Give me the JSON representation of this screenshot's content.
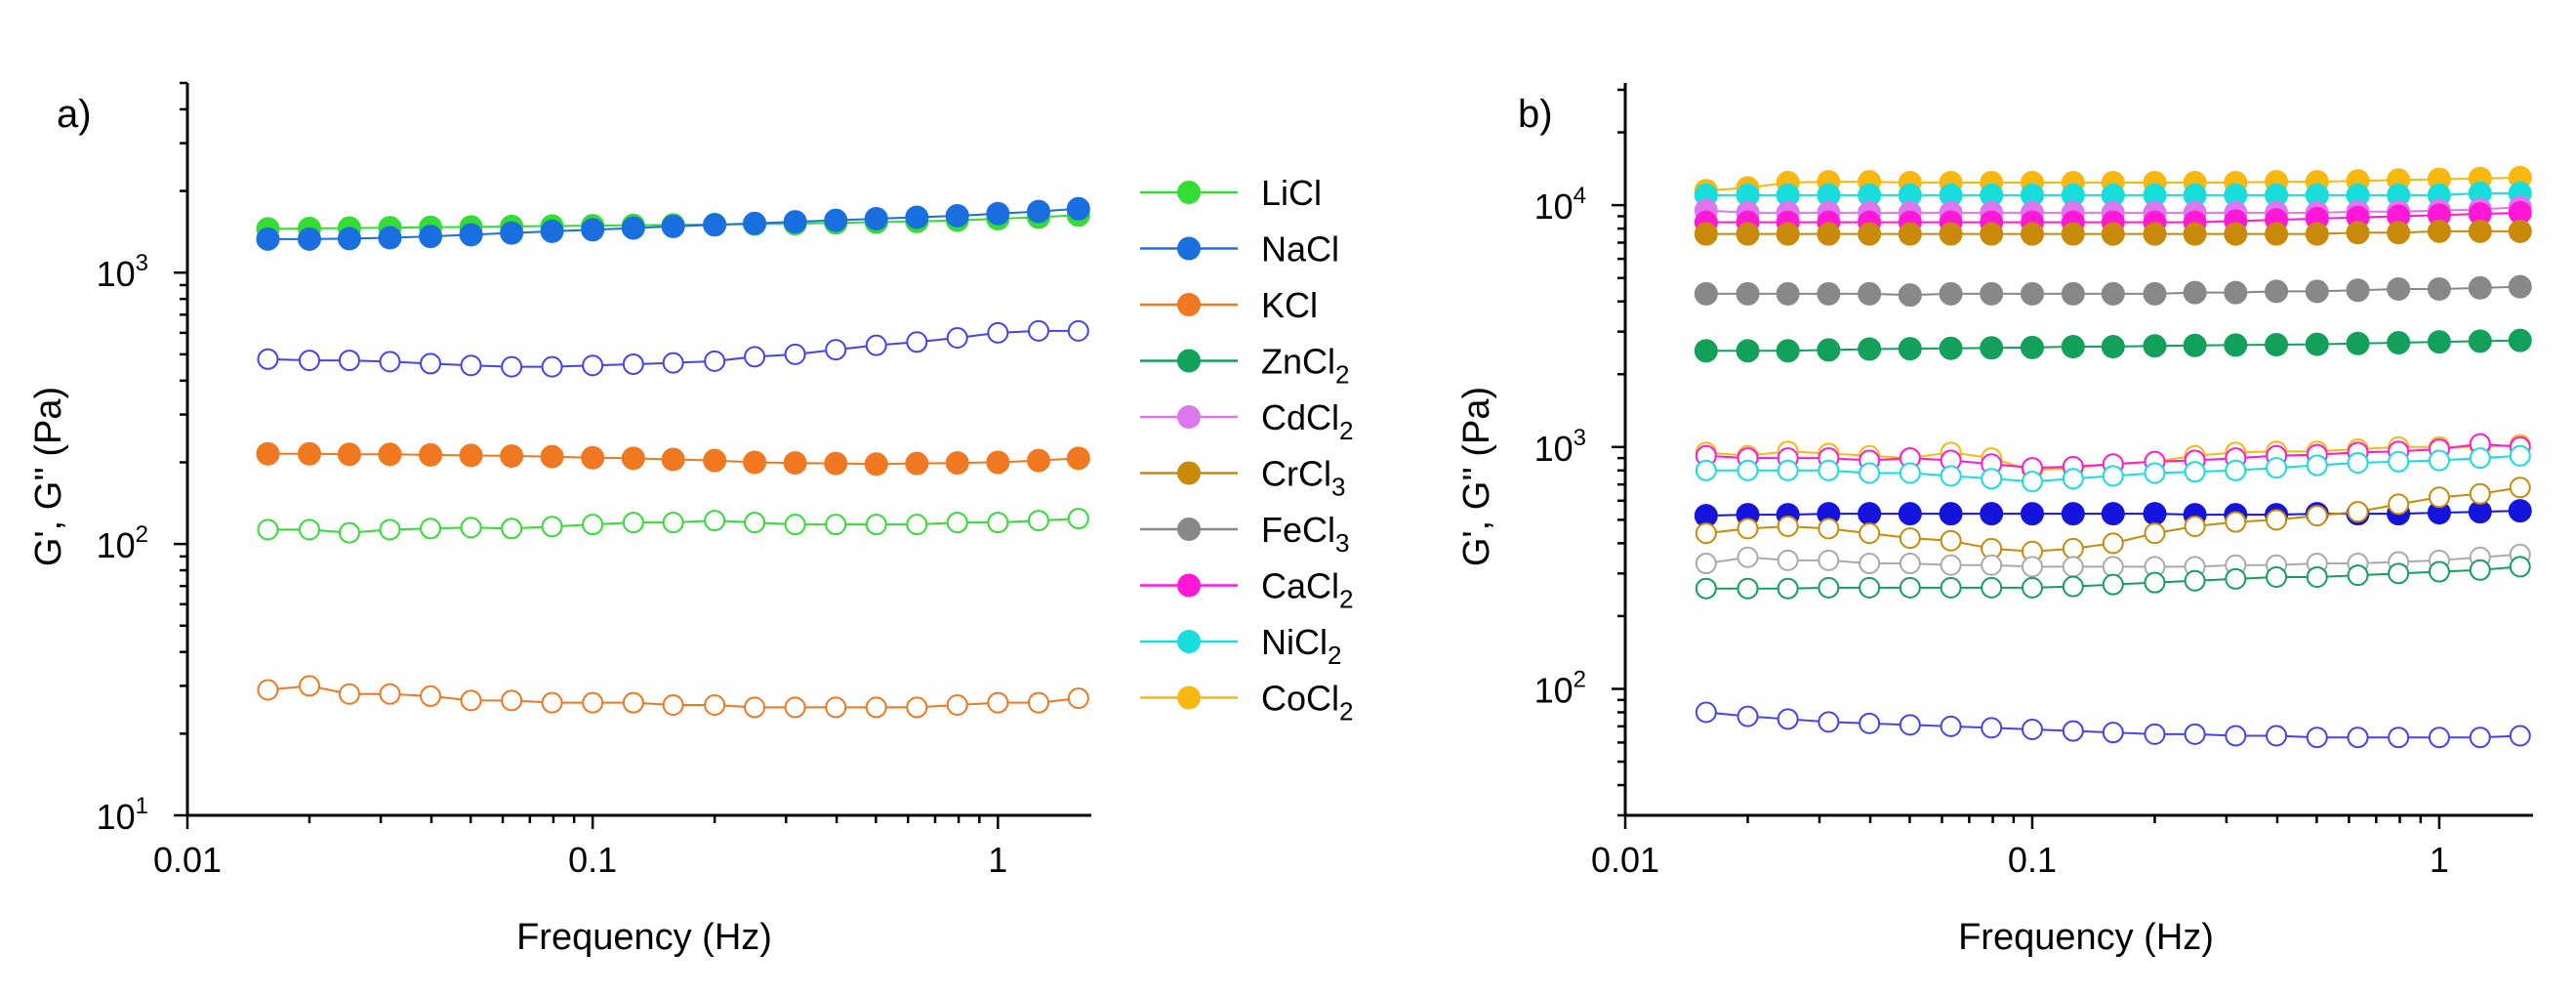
{
  "figure": {
    "panel_a_label": "a)",
    "panel_b_label": "b)"
  },
  "legend": {
    "items": [
      {
        "name": "LiCl",
        "color": "#33dd33",
        "sub": ""
      },
      {
        "name": "NaCl",
        "color": "#1a6fe0",
        "sub": ""
      },
      {
        "name": "KCl",
        "color": "#f07820",
        "sub": ""
      },
      {
        "name": "ZnCl",
        "color": "#12a05a",
        "sub": "2"
      },
      {
        "name": "CdCl",
        "color": "#dd77ee",
        "sub": "2"
      },
      {
        "name": "CrCl",
        "color": "#c88a08",
        "sub": "3"
      },
      {
        "name": "FeCl",
        "color": "#888888",
        "sub": "3"
      },
      {
        "name": "CaCl",
        "color": "#ff18d8",
        "sub": "2"
      },
      {
        "name": "NiCl",
        "color": "#18dddd",
        "sub": "2"
      },
      {
        "name": "CoCl",
        "color": "#f8b810",
        "sub": "2"
      }
    ]
  },
  "chart_data": [
    {
      "id": "a",
      "type": "scatter",
      "title": "",
      "xlabel": "Frequency (Hz)",
      "ylabel": "G', G'' (Pa)",
      "xscale": "log",
      "yscale": "log",
      "xlim": [
        0.01,
        1.7
      ],
      "ylim": [
        10,
        5000
      ],
      "xticks": [
        {
          "v": 0.01,
          "label": "0.01"
        },
        {
          "v": 0.1,
          "label": "0.1"
        },
        {
          "v": 1,
          "label": "1"
        }
      ],
      "yticks": [
        {
          "v": 10,
          "base": "10",
          "exp": "1"
        },
        {
          "v": 100,
          "base": "10",
          "exp": "2"
        },
        {
          "v": 1000,
          "base": "10",
          "exp": "3"
        }
      ],
      "x": [
        0.0158,
        0.02,
        0.0251,
        0.0316,
        0.0398,
        0.0501,
        0.0631,
        0.0794,
        0.1,
        0.126,
        0.158,
        0.2,
        0.251,
        0.316,
        0.398,
        0.501,
        0.631,
        0.794,
        1.0,
        1.26,
        1.58
      ],
      "series": [
        {
          "name": "LiCl G'",
          "color": "#33dd33",
          "filled": true,
          "values": [
            1450,
            1455,
            1460,
            1465,
            1470,
            1475,
            1480,
            1485,
            1490,
            1495,
            1500,
            1505,
            1510,
            1515,
            1525,
            1535,
            1545,
            1560,
            1580,
            1600,
            1630
          ]
        },
        {
          "name": "NaCl G'",
          "color": "#1a6fe0",
          "filled": true,
          "values": [
            1330,
            1330,
            1335,
            1345,
            1360,
            1380,
            1400,
            1420,
            1440,
            1460,
            1480,
            1500,
            1520,
            1540,
            1560,
            1580,
            1600,
            1620,
            1650,
            1680,
            1720
          ]
        },
        {
          "name": "NaCl G''",
          "color": "#4444ee",
          "filled": false,
          "values": [
            480,
            475,
            475,
            470,
            462,
            455,
            450,
            450,
            455,
            460,
            465,
            472,
            490,
            500,
            520,
            540,
            555,
            575,
            600,
            610,
            610
          ]
        },
        {
          "name": "KCl G'",
          "color": "#f07820",
          "filled": true,
          "values": [
            215,
            215,
            214,
            214,
            213,
            212,
            211,
            210,
            208,
            207,
            205,
            203,
            200,
            199,
            198,
            197,
            198,
            199,
            200,
            203,
            207
          ]
        },
        {
          "name": "LiCl G''",
          "color": "#33dd33",
          "filled": false,
          "values": [
            113,
            113,
            110,
            113,
            114,
            115,
            114,
            116,
            118,
            120,
            120,
            122,
            120,
            118,
            118,
            118,
            118,
            120,
            120,
            122,
            124
          ]
        },
        {
          "name": "KCl G''",
          "color": "#f07820",
          "filled": false,
          "values": [
            29,
            30,
            28,
            28,
            27.5,
            26.5,
            26.5,
            26,
            26,
            26,
            25.5,
            25.5,
            25,
            25,
            25,
            25,
            25,
            25.5,
            26,
            26,
            27
          ]
        }
      ]
    },
    {
      "id": "b",
      "type": "scatter",
      "title": "",
      "xlabel": "Frequency (Hz)",
      "ylabel": "G', G'' (Pa)",
      "xscale": "log",
      "yscale": "log",
      "xlim": [
        0.01,
        1.7
      ],
      "ylim": [
        30,
        32000
      ],
      "xticks": [
        {
          "v": 0.01,
          "label": "0.01"
        },
        {
          "v": 0.1,
          "label": "0.1"
        },
        {
          "v": 1,
          "label": "1"
        }
      ],
      "yticks": [
        {
          "v": 100,
          "base": "10",
          "exp": "2"
        },
        {
          "v": 1000,
          "base": "10",
          "exp": "3"
        },
        {
          "v": 10000,
          "base": "10",
          "exp": "4"
        }
      ],
      "x": [
        0.0158,
        0.02,
        0.0251,
        0.0316,
        0.0398,
        0.0501,
        0.0631,
        0.0794,
        0.1,
        0.126,
        0.158,
        0.2,
        0.251,
        0.316,
        0.398,
        0.501,
        0.631,
        0.794,
        1.0,
        1.26,
        1.58
      ],
      "series": [
        {
          "name": "CoCl2 G'",
          "color": "#f8b810",
          "filled": true,
          "values": [
            11500,
            11800,
            12400,
            12500,
            12500,
            12400,
            12400,
            12400,
            12400,
            12400,
            12400,
            12400,
            12400,
            12400,
            12500,
            12500,
            12600,
            12700,
            12800,
            12900,
            13000
          ]
        },
        {
          "name": "NiCl2 G'",
          "color": "#18dddd",
          "filled": true,
          "values": [
            11000,
            11000,
            11000,
            11000,
            11000,
            11000,
            11000,
            11000,
            11000,
            11000,
            11000,
            11000,
            11000,
            11000,
            11000,
            11000,
            11000,
            11000,
            11000,
            11200,
            11200
          ]
        },
        {
          "name": "CdCl2 G'",
          "color": "#dd77ee",
          "filled": true,
          "values": [
            9500,
            9300,
            9300,
            9300,
            9300,
            9300,
            9300,
            9300,
            9300,
            9300,
            9300,
            9300,
            9300,
            9300,
            9300,
            9300,
            9400,
            9400,
            9500,
            9600,
            9800
          ]
        },
        {
          "name": "CaCl2 G'",
          "color": "#ff18d8",
          "filled": true,
          "values": [
            8500,
            8500,
            8500,
            8500,
            8500,
            8500,
            8500,
            8500,
            8500,
            8500,
            8500,
            8500,
            8500,
            8600,
            8700,
            8800,
            8900,
            9000,
            9100,
            9200,
            9300
          ]
        },
        {
          "name": "CrCl3 G'",
          "color": "#c88a08",
          "filled": true,
          "values": [
            7600,
            7600,
            7600,
            7600,
            7600,
            7600,
            7600,
            7600,
            7600,
            7600,
            7600,
            7600,
            7600,
            7600,
            7600,
            7600,
            7700,
            7700,
            7800,
            7800,
            7800
          ]
        },
        {
          "name": "FeCl3 G'",
          "color": "#888888",
          "filled": true,
          "values": [
            4300,
            4300,
            4300,
            4300,
            4300,
            4250,
            4300,
            4300,
            4300,
            4300,
            4300,
            4300,
            4350,
            4350,
            4400,
            4400,
            4450,
            4500,
            4500,
            4550,
            4600
          ]
        },
        {
          "name": "ZnCl2 G'",
          "color": "#12a05a",
          "filled": true,
          "values": [
            2500,
            2500,
            2500,
            2520,
            2540,
            2550,
            2560,
            2570,
            2580,
            2600,
            2600,
            2620,
            2630,
            2640,
            2650,
            2660,
            2680,
            2700,
            2720,
            2740,
            2760
          ]
        },
        {
          "name": "CoCl2 G''",
          "color": "#f8b810",
          "filled": false,
          "values": [
            950,
            920,
            960,
            940,
            920,
            900,
            950,
            900,
            800,
            820,
            850,
            870,
            920,
            950,
            960,
            960,
            980,
            1000,
            1000,
            1000,
            1020
          ]
        },
        {
          "name": "CaCl2 G''",
          "color": "#ff18d8",
          "filled": false,
          "values": [
            920,
            900,
            900,
            900,
            880,
            900,
            880,
            850,
            820,
            830,
            850,
            870,
            880,
            900,
            920,
            930,
            950,
            960,
            980,
            1030,
            1000
          ]
        },
        {
          "name": "NiCl2 G''",
          "color": "#18dddd",
          "filled": false,
          "values": [
            800,
            800,
            800,
            800,
            780,
            780,
            760,
            740,
            720,
            740,
            760,
            780,
            790,
            800,
            820,
            840,
            860,
            870,
            880,
            900,
            920
          ]
        },
        {
          "name": "NaCl G' (b)",
          "color": "#1414dd",
          "filled": true,
          "values": [
            520,
            525,
            525,
            530,
            530,
            530,
            530,
            530,
            530,
            530,
            530,
            530,
            525,
            525,
            525,
            530,
            530,
            530,
            535,
            540,
            545
          ]
        },
        {
          "name": "CrCl3 G''",
          "color": "#c88a08",
          "filled": false,
          "values": [
            440,
            460,
            470,
            460,
            440,
            420,
            410,
            380,
            370,
            380,
            400,
            440,
            470,
            490,
            500,
            520,
            540,
            580,
            620,
            640,
            680
          ]
        },
        {
          "name": "FeCl3 G''",
          "color": "#aaaaaa",
          "filled": false,
          "values": [
            330,
            350,
            340,
            340,
            330,
            330,
            325,
            325,
            320,
            320,
            320,
            320,
            320,
            325,
            325,
            330,
            330,
            335,
            340,
            350,
            360
          ]
        },
        {
          "name": "ZnCl2 G''",
          "color": "#12a05a",
          "filled": false,
          "values": [
            260,
            260,
            260,
            262,
            262,
            262,
            262,
            262,
            262,
            265,
            270,
            275,
            280,
            285,
            290,
            290,
            295,
            300,
            305,
            310,
            320
          ]
        },
        {
          "name": "NaCl G'' (b)",
          "color": "#4444ee",
          "filled": false,
          "values": [
            80,
            77,
            75,
            73,
            72,
            71,
            70,
            69,
            68,
            67,
            66,
            65,
            65,
            64,
            64,
            63,
            63,
            63,
            63,
            63,
            64
          ]
        }
      ]
    }
  ]
}
